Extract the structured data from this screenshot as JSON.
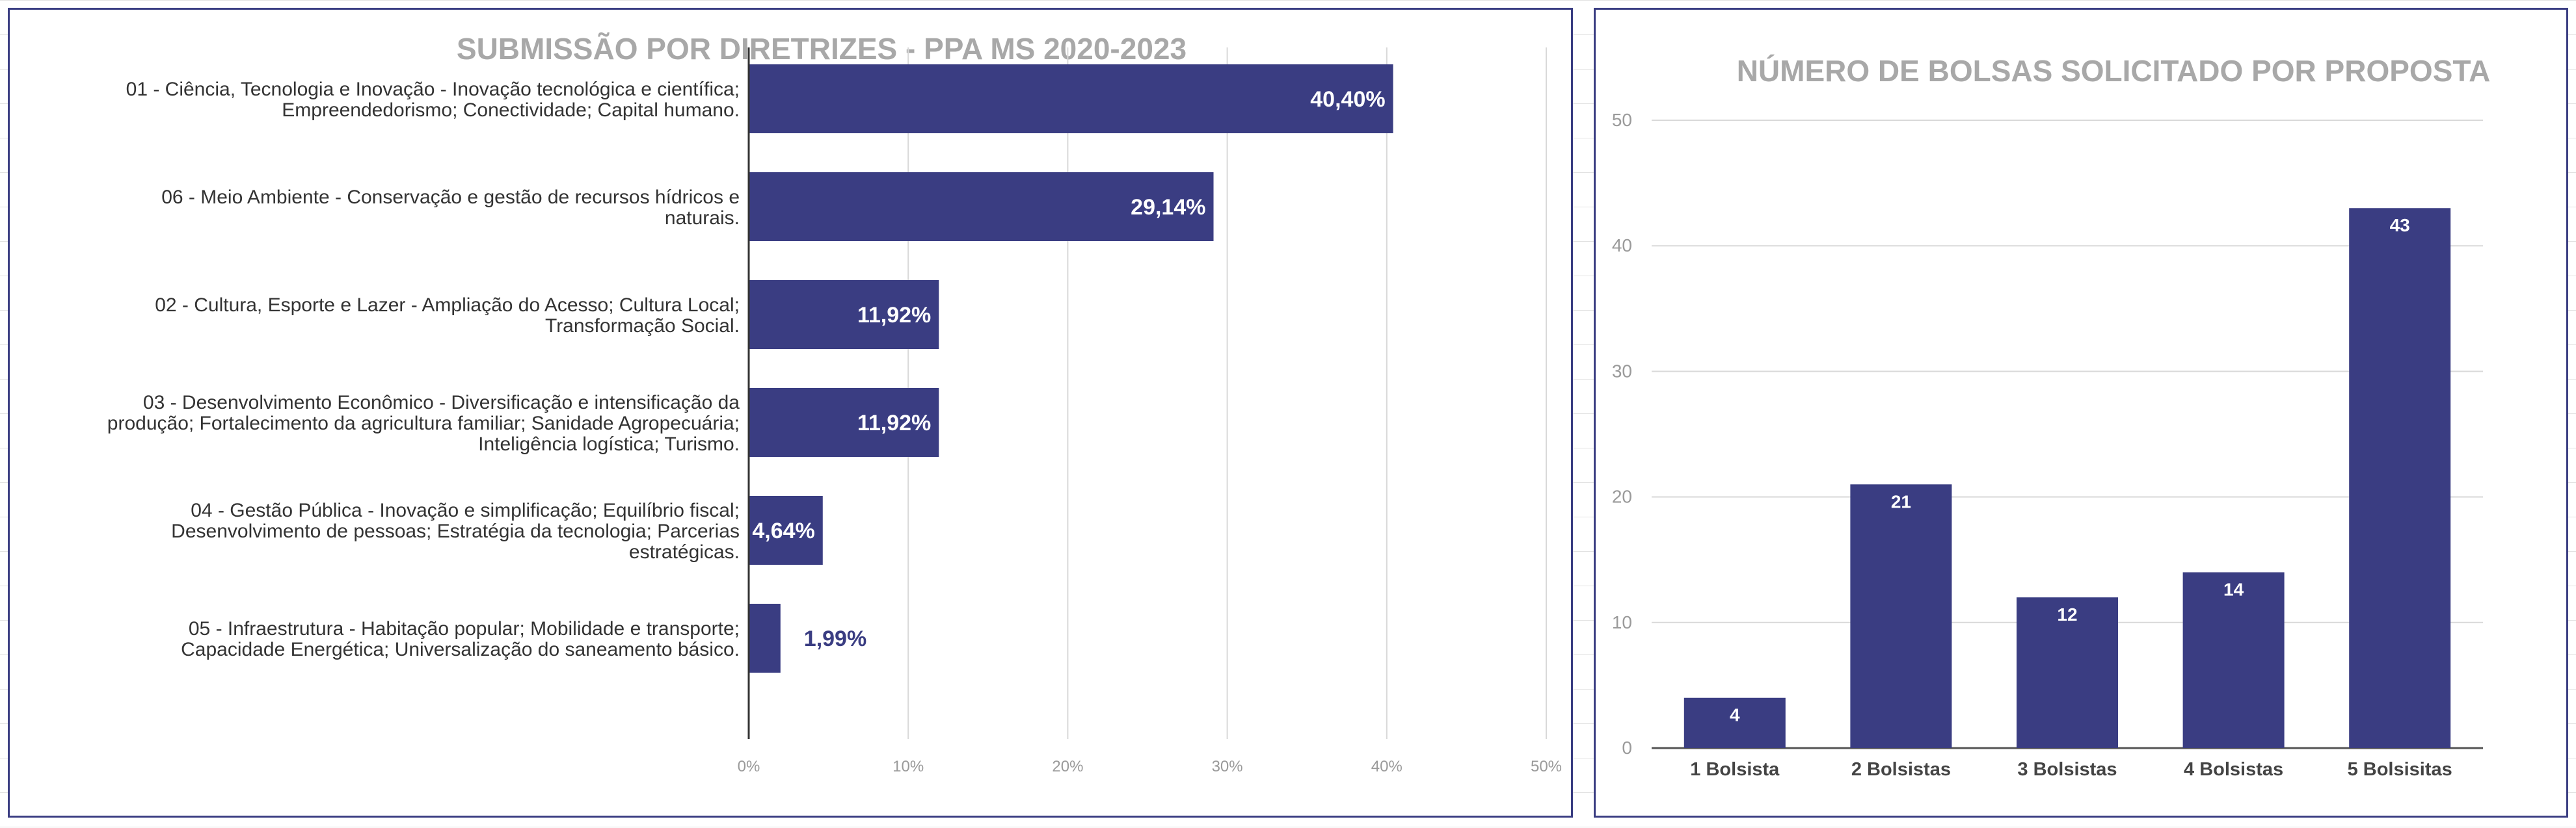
{
  "chart_data": [
    {
      "type": "bar",
      "orientation": "horizontal",
      "title": "SUBMISSÃO POR DIRETRIZES - PPA MS 2020-2023",
      "categories": [
        [
          "01 - Ciência, Tecnologia e Inovação - Inovação tecnológica e científica;",
          "Empreendedorismo; Conectividade; Capital humano."
        ],
        [
          "06 - Meio Ambiente - Conservação e gestão de recursos hídricos e",
          "naturais."
        ],
        [
          "02 - Cultura, Esporte e Lazer - Ampliação do Acesso; Cultura Local;",
          "Transformação Social."
        ],
        [
          "03 - Desenvolvimento Econômico - Diversificação e intensificação da",
          "produção; Fortalecimento da agricultura familiar; Sanidade Agropecuária;",
          "Inteligência logística; Turismo."
        ],
        [
          "04 - Gestão Pública - Inovação e simplificação; Equilíbrio fiscal;",
          "Desenvolvimento de pessoas; Estratégia da tecnologia; Parcerias",
          "estratégicas."
        ],
        [
          "05 - Infraestrutura - Habitação popular; Mobilidade e transporte;",
          "Capacidade Energética; Universalização do saneamento básico."
        ]
      ],
      "values": [
        40.4,
        29.14,
        11.92,
        11.92,
        4.64,
        1.99
      ],
      "data_labels": [
        "40,40%",
        "29,14%",
        "11,92%",
        "11,92%",
        "4,64%",
        "1,99%"
      ],
      "xlim": [
        0,
        50
      ],
      "x_ticks": [
        0,
        10,
        20,
        30,
        40,
        50
      ],
      "x_tick_labels": [
        "0%",
        "10%",
        "20%",
        "30%",
        "40%",
        "50%"
      ],
      "grid": true,
      "bar_color": "#3a3d82"
    },
    {
      "type": "bar",
      "orientation": "vertical",
      "title": "NÚMERO DE BOLSAS SOLICITADO POR PROPOSTA",
      "categories": [
        "1 Bolsista",
        "2 Bolsistas",
        "3 Bolsistas",
        "4 Bolsistas",
        "5 Bolsisitas"
      ],
      "values": [
        4,
        21,
        12,
        14,
        43
      ],
      "data_labels": [
        "4",
        "21",
        "12",
        "14",
        "43"
      ],
      "ylim": [
        0,
        50
      ],
      "y_ticks": [
        0,
        10,
        20,
        30,
        40,
        50
      ],
      "y_tick_labels": [
        "0",
        "10",
        "20",
        "30",
        "40",
        "50"
      ],
      "grid": true,
      "bar_color": "#3a3d82"
    }
  ]
}
